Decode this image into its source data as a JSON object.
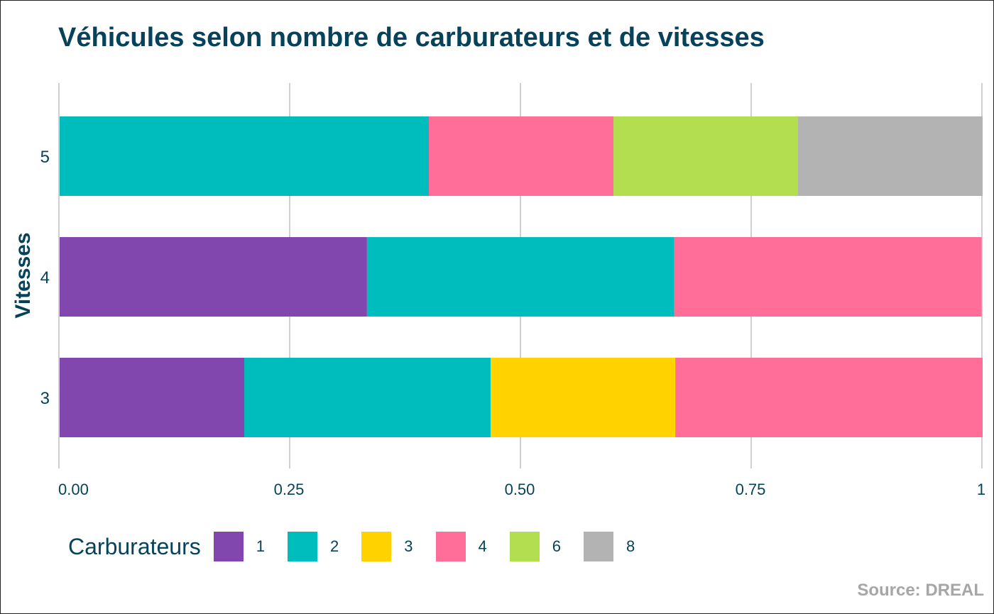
{
  "chart_data": {
    "type": "bar",
    "orientation": "horizontal",
    "stacked": "percent",
    "title": "Véhicules selon nombre de carburateurs et de vitesses",
    "xlabel": "",
    "ylabel": "Vitesses",
    "xlim": [
      0,
      1
    ],
    "x_ticks": [
      "0.00",
      "0.25",
      "0.50",
      "0.75",
      "1"
    ],
    "categories": [
      "3",
      "4",
      "5"
    ],
    "legend_title": "Carburateurs",
    "legend_position": "bottom",
    "grid": "vertical major",
    "series": [
      {
        "name": "1",
        "color": "#8246af",
        "values": [
          0.2,
          0.333,
          0
        ]
      },
      {
        "name": "2",
        "color": "#00bdbd",
        "values": [
          0.267,
          0.333,
          0.4
        ]
      },
      {
        "name": "3",
        "color": "#ffd200",
        "values": [
          0.2,
          0,
          0
        ]
      },
      {
        "name": "4",
        "color": "#ff6e98",
        "values": [
          0.333,
          0.333,
          0.2
        ]
      },
      {
        "name": "6",
        "color": "#b3de50",
        "values": [
          0,
          0,
          0.2
        ]
      },
      {
        "name": "8",
        "color": "#b3b3b3",
        "values": [
          0,
          0,
          0.2
        ]
      }
    ],
    "caption": "Source: DREAL"
  }
}
